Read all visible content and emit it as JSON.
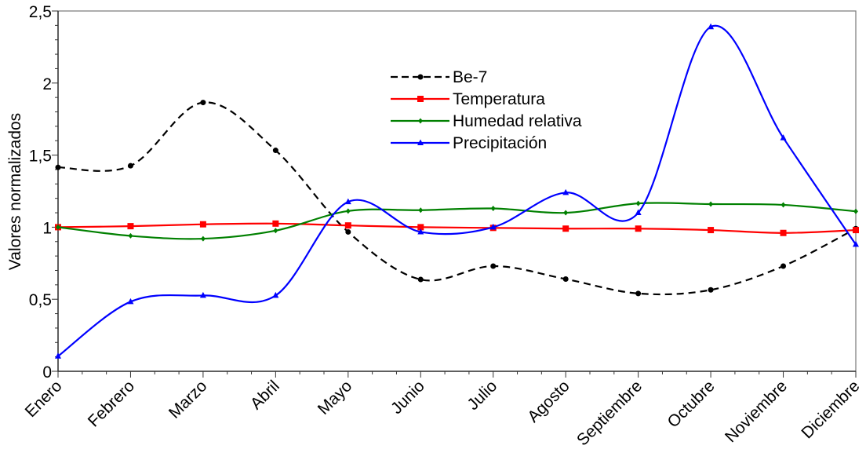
{
  "chart_data": {
    "type": "line",
    "title": "",
    "xlabel": "",
    "ylabel": "Valores normalizados",
    "categories": [
      "Enero",
      "Febrero",
      "Marzo",
      "Abril",
      "Mayo",
      "Junio",
      "Julio",
      "Agosto",
      "Septiembre",
      "Octubre",
      "Noviembre",
      "Diciembre"
    ],
    "ylim": [
      0,
      2.5
    ],
    "yticks": [
      "0",
      "0,5",
      "1",
      "1,5",
      "2",
      "2,5"
    ],
    "grid": false,
    "smooth": true,
    "legend_position": "top-center",
    "series": [
      {
        "name": "Be-7",
        "color": "#000000",
        "dash": true,
        "marker": "circle",
        "values": [
          1.415,
          1.426,
          1.865,
          1.533,
          0.967,
          0.637,
          0.73,
          0.64,
          0.54,
          0.565,
          0.73,
          0.99
        ]
      },
      {
        "name": "Temperatura",
        "color": "#ff0000",
        "dash": false,
        "marker": "square",
        "values": [
          1.0,
          1.007,
          1.02,
          1.025,
          1.012,
          1.0,
          0.995,
          0.99,
          0.99,
          0.98,
          0.96,
          0.98
        ]
      },
      {
        "name": "Humedad relativa",
        "color": "#008000",
        "dash": false,
        "marker": "diamond",
        "values": [
          1.0,
          0.94,
          0.92,
          0.976,
          1.112,
          1.118,
          1.13,
          1.1,
          1.165,
          1.16,
          1.155,
          1.11
        ]
      },
      {
        "name": "Precipitación",
        "color": "#0000ff",
        "dash": false,
        "marker": "triangle",
        "values": [
          0.105,
          0.483,
          0.526,
          0.526,
          1.176,
          0.967,
          1.0,
          1.24,
          1.1,
          2.39,
          1.62,
          0.88
        ]
      }
    ]
  }
}
